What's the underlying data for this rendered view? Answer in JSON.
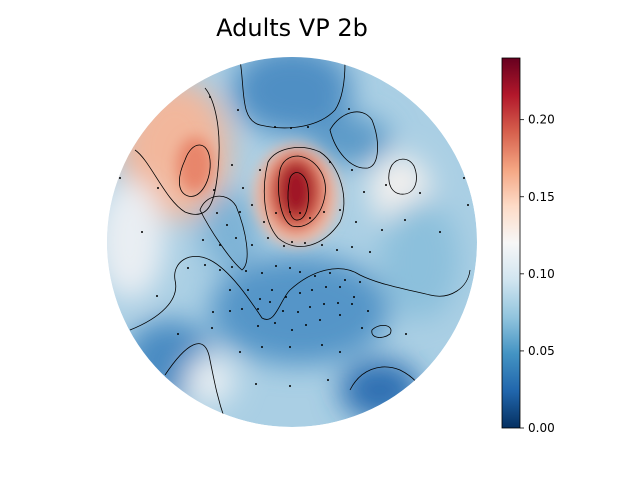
{
  "chart_data": {
    "type": "heatmap",
    "title": "Adults VP 2b",
    "colormap": "RdBu_r",
    "colorbar": {
      "range": [
        0,
        0.24
      ],
      "ticks": [
        0.0,
        0.05,
        0.1,
        0.15,
        0.2
      ],
      "tick_labels": [
        "0.00",
        "0.05",
        "0.10",
        "0.15",
        "0.20"
      ],
      "stops": [
        "#053061",
        "#2166ac",
        "#4393c3",
        "#92c5de",
        "#d1e5f0",
        "#f7f7f7",
        "#fddbc7",
        "#f4a582",
        "#d6604d",
        "#b2182b",
        "#67001f"
      ]
    }
  }
}
